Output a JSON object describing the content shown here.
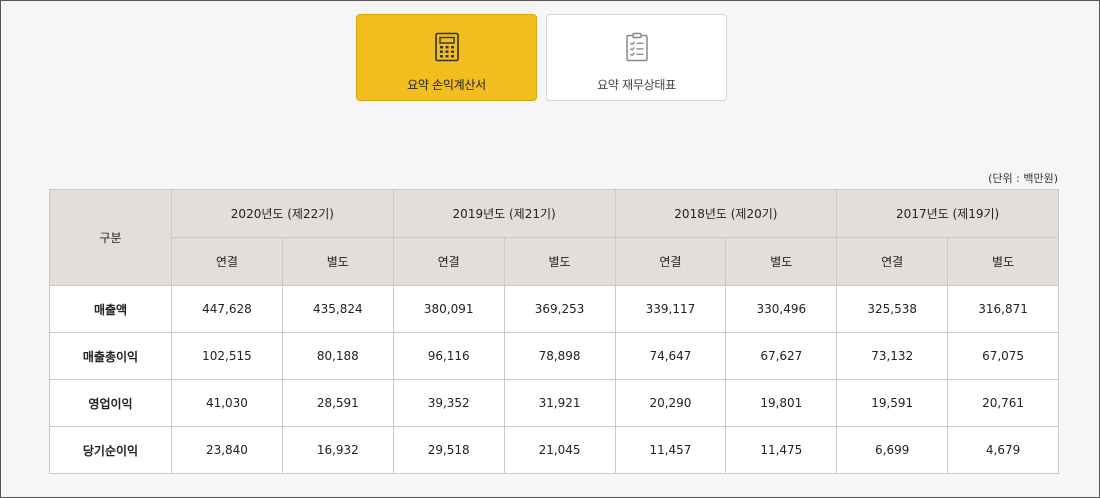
{
  "tabs": [
    {
      "label": "요약 손익계산서",
      "icon": "calculator-icon",
      "active": true
    },
    {
      "label": "요약 재무상태표",
      "icon": "clipboard-checklist-icon",
      "active": false
    }
  ],
  "unit_label": "(단위 : 백만원)",
  "table": {
    "corner_header": "구분",
    "years": [
      "2020년도 (제22기)",
      "2019년도 (제21기)",
      "2018년도 (제20기)",
      "2017년도 (제19기)"
    ],
    "sub_headers": [
      "연결",
      "별도"
    ],
    "rows": [
      {
        "label": "매출액",
        "values": [
          "447,628",
          "435,824",
          "380,091",
          "369,253",
          "339,117",
          "330,496",
          "325,538",
          "316,871"
        ]
      },
      {
        "label": "매출총이익",
        "values": [
          "102,515",
          "80,188",
          "96,116",
          "78,898",
          "74,647",
          "67,627",
          "73,132",
          "67,075"
        ]
      },
      {
        "label": "영업이익",
        "values": [
          "41,030",
          "28,591",
          "39,352",
          "31,921",
          "20,290",
          "19,801",
          "19,591",
          "20,761"
        ]
      },
      {
        "label": "당기순이익",
        "values": [
          "23,840",
          "16,932",
          "29,518",
          "21,045",
          "11,457",
          "11,475",
          "6,699",
          "4,679"
        ]
      }
    ]
  },
  "colors": {
    "active_tab": "#f2be1e",
    "header_bg": "#e4dedb",
    "border": "#c9c9cc"
  }
}
